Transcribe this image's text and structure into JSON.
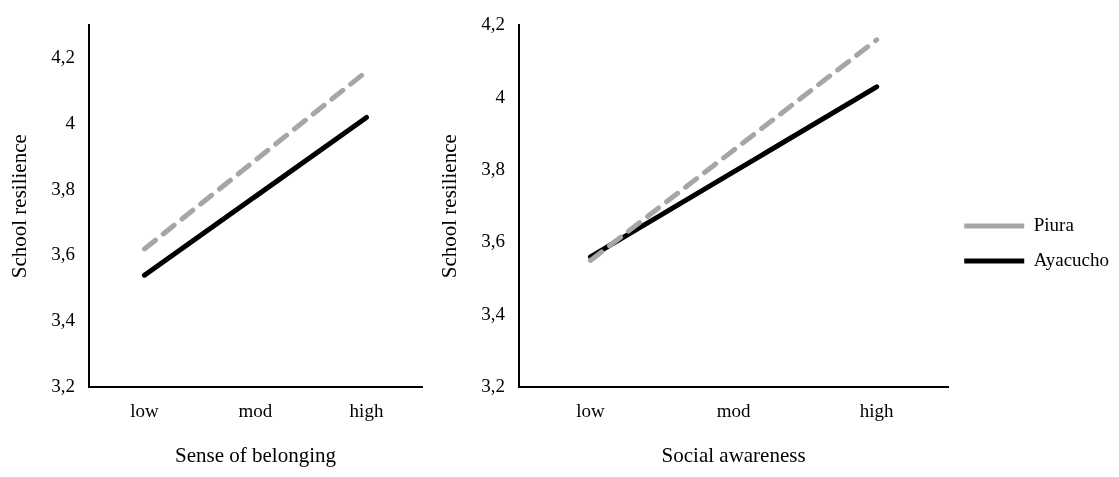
{
  "chart_data": [
    {
      "type": "line",
      "xlabel": "Sense of belonging",
      "ylabel": "School resilience",
      "categories": [
        "low",
        "mod",
        "high"
      ],
      "ylim": [
        3.2,
        4.3
      ],
      "yticks": [
        {
          "value": 3.2,
          "label": "3,2"
        },
        {
          "value": 3.4,
          "label": "3,4"
        },
        {
          "value": 3.6,
          "label": "3,6"
        },
        {
          "value": 3.8,
          "label": "3,8"
        },
        {
          "value": 4,
          "label": "4"
        },
        {
          "value": 4.2,
          "label": "4,2"
        }
      ],
      "grid": false,
      "legend": false,
      "marker": "none",
      "series": [
        {
          "color": "#a6a6a6",
          "line_style": "dashed",
          "values": [
            3.62,
            3.89,
            4.16
          ]
        },
        {
          "color": "#000000",
          "line_style": "solid",
          "values": [
            3.54,
            3.78,
            4.02
          ]
        }
      ]
    },
    {
      "type": "line",
      "xlabel": "Social awareness",
      "ylabel": "School resilience",
      "categories": [
        "low",
        "mod",
        "high"
      ],
      "ylim": [
        3.2,
        4.2
      ],
      "yticks": [
        {
          "value": 3.2,
          "label": "3,2"
        },
        {
          "value": 3.4,
          "label": "3,4"
        },
        {
          "value": 3.6,
          "label": "3,6"
        },
        {
          "value": 3.8,
          "label": "3,8"
        },
        {
          "value": 4,
          "label": "4"
        },
        {
          "value": 4.2,
          "label": "4,2"
        }
      ],
      "grid": false,
      "legend": "right",
      "marker": "none",
      "series": [
        {
          "name": "Piura",
          "color": "#a6a6a6",
          "line_style": "dashed",
          "values": [
            3.55,
            3.855,
            4.16
          ]
        },
        {
          "name": "Ayacucho",
          "color": "#000000",
          "line_style": "solid",
          "values": [
            3.56,
            3.795,
            4.03
          ]
        }
      ]
    }
  ]
}
